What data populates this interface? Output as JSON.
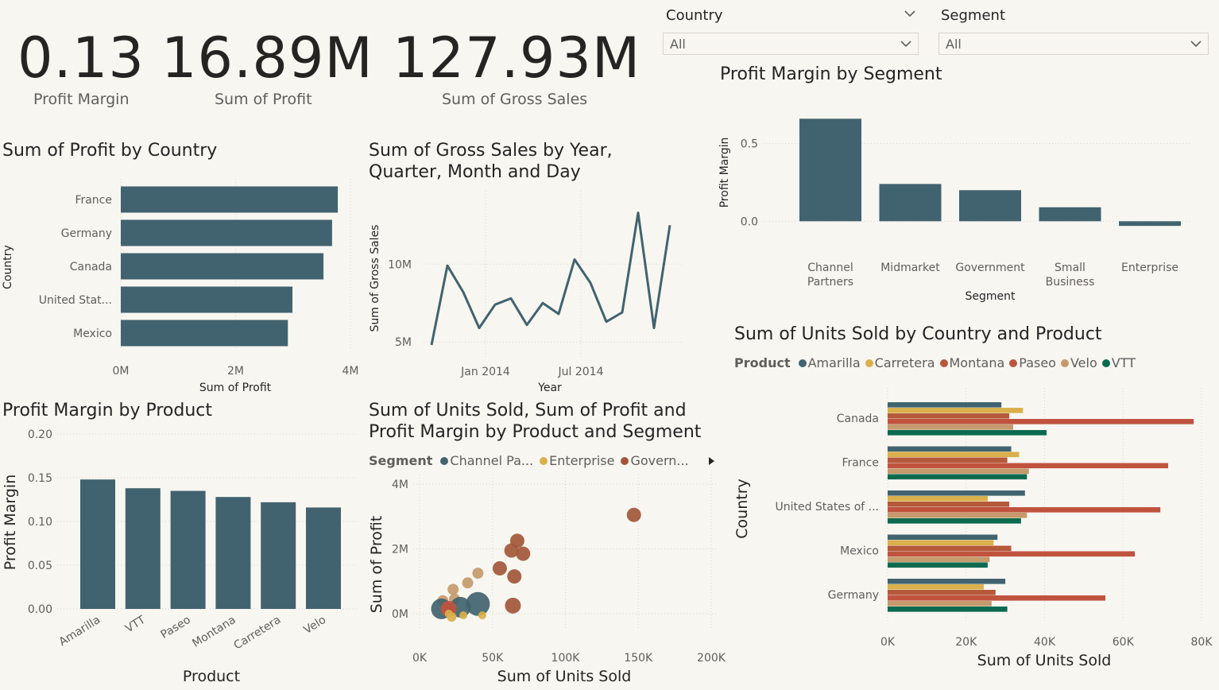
{
  "kpis": [
    {
      "value": "0.13",
      "label": "Profit Margin"
    },
    {
      "value": "16.89M",
      "label": "Sum of Profit"
    },
    {
      "value": "127.93M",
      "label": "Sum of Gross Sales"
    }
  ],
  "slicers": {
    "country": {
      "title": "Country",
      "value": "All"
    },
    "segment": {
      "title": "Segment",
      "value": "All"
    }
  },
  "colors": {
    "bar": "#41636f",
    "Amarilla": "#41636f",
    "Carretera": "#d9b04b",
    "Montana": "#b5593b",
    "Paseo": "#c0533e",
    "Velo": "#c59a6c",
    "VTT": "#0b6a4f",
    "ChannelPartners": "#41636f",
    "Enterprise": "#d9b04b",
    "Government": "#a2573a"
  },
  "chart_data": [
    {
      "id": "profit_by_country",
      "type": "bar",
      "orientation": "horizontal",
      "title": "Sum of Profit by Country",
      "categories": [
        "France",
        "Germany",
        "Canada",
        "United Stat...",
        "Mexico"
      ],
      "values": [
        3.78,
        3.68,
        3.53,
        2.99,
        2.91
      ],
      "xticks": [
        "0M",
        "2M",
        "4M"
      ],
      "xlim": [
        0,
        4
      ],
      "xlabel": "Sum of Profit",
      "ylabel": "Country"
    },
    {
      "id": "gross_sales_by_date",
      "type": "line",
      "title": "Sum of Gross Sales by Year, Quarter, Month and Day",
      "x": [
        "2013-09",
        "2013-10",
        "2013-11",
        "2013-12",
        "2014-01",
        "2014-02",
        "2014-03",
        "2014-04",
        "2014-05",
        "2014-06",
        "2014-07",
        "2014-08",
        "2014-09",
        "2014-10",
        "2014-11",
        "2014-12"
      ],
      "values": [
        4.8,
        9.9,
        8.2,
        5.9,
        7.4,
        7.8,
        6.1,
        7.5,
        6.8,
        10.3,
        8.8,
        6.3,
        6.9,
        13.3,
        5.9,
        12.5
      ],
      "xticks": [
        "Jan 2014",
        "Jul 2014"
      ],
      "yticks": [
        "5M",
        "10M"
      ],
      "ylim": [
        4.5,
        14.2
      ],
      "xlabel": "Year",
      "ylabel": "Sum of Gross Sales"
    },
    {
      "id": "profit_margin_by_segment",
      "type": "bar",
      "title": "Profit Margin by Segment",
      "categories": [
        "Channel Partners",
        "Midmarket",
        "Government",
        "Small Business",
        "Enterprise"
      ],
      "values": [
        0.66,
        0.24,
        0.2,
        0.09,
        -0.03
      ],
      "yticks": [
        "0.5",
        "0.0"
      ],
      "ylim": [
        -0.07,
        0.8
      ],
      "xlabel": "Segment",
      "ylabel": "Profit Margin"
    },
    {
      "id": "profit_margin_by_product",
      "type": "bar",
      "title": "Profit Margin by Product",
      "categories": [
        "Amarilla",
        "VTT",
        "Paseo",
        "Montana",
        "Carretera",
        "Velo"
      ],
      "values": [
        0.148,
        0.138,
        0.135,
        0.128,
        0.122,
        0.116
      ],
      "yticks": [
        "0.00",
        "0.05",
        "0.10",
        "0.15",
        "0.20"
      ],
      "ylim": [
        0,
        0.2
      ],
      "xlabel": "Product",
      "ylabel": "Profit Margin"
    },
    {
      "id": "units_profit_margin_scatter",
      "type": "scatter",
      "title": "Sum of Units Sold, Sum of Profit and Profit Margin by Product and Segment",
      "legend_title": "Segment",
      "legend": [
        "Channel Pa...",
        "Enterprise",
        "Govern..."
      ],
      "points": [
        {
          "x": 147000,
          "y": 3.05,
          "c": "Government",
          "r": 9
        },
        {
          "x": 67000,
          "y": 2.25,
          "c": "Government",
          "r": 9
        },
        {
          "x": 71000,
          "y": 1.85,
          "c": "Government",
          "r": 9
        },
        {
          "x": 63000,
          "y": 1.95,
          "c": "Government",
          "r": 9
        },
        {
          "x": 55000,
          "y": 1.4,
          "c": "Government",
          "r": 9
        },
        {
          "x": 65000,
          "y": 1.15,
          "c": "Government",
          "r": 9
        },
        {
          "x": 64000,
          "y": 0.25,
          "c": "Government",
          "r": 10
        },
        {
          "x": 40000,
          "y": 1.25,
          "c": "Velo",
          "r": 7
        },
        {
          "x": 33000,
          "y": 0.95,
          "c": "Velo",
          "r": 7
        },
        {
          "x": 23000,
          "y": 0.75,
          "c": "Velo",
          "r": 7
        },
        {
          "x": 16000,
          "y": 0.4,
          "c": "Velo",
          "r": 7
        },
        {
          "x": 24000,
          "y": 0.45,
          "c": "Velo",
          "r": 7
        },
        {
          "x": 40000,
          "y": 0.3,
          "c": "ChannelPartners",
          "r": 15
        },
        {
          "x": 15000,
          "y": 0.15,
          "c": "ChannelPartners",
          "r": 13
        },
        {
          "x": 28000,
          "y": 0.2,
          "c": "ChannelPartners",
          "r": 13
        },
        {
          "x": 20000,
          "y": 0.15,
          "c": "Paseo",
          "r": 10
        },
        {
          "x": 43000,
          "y": -0.05,
          "c": "Enterprise",
          "r": 5
        },
        {
          "x": 30000,
          "y": -0.05,
          "c": "Enterprise",
          "r": 5
        },
        {
          "x": 20000,
          "y": 0.0,
          "c": "Enterprise",
          "r": 5
        },
        {
          "x": 22000,
          "y": -0.1,
          "c": "Enterprise",
          "r": 6
        }
      ],
      "xticks": [
        "0K",
        "50K",
        "100K",
        "150K",
        "200K"
      ],
      "xlim": [
        0,
        200000
      ],
      "yticks": [
        "0M",
        "2M",
        "4M"
      ],
      "ylim": [
        -0.2,
        4
      ],
      "xlabel": "Sum of Units Sold",
      "ylabel": "Sum of Profit"
    },
    {
      "id": "units_by_country_product",
      "type": "bar",
      "orientation": "horizontal",
      "title": "Sum of Units Sold by Country and Product",
      "legend_title": "Product",
      "categories": [
        "Canada",
        "France",
        "United States of ...",
        "Mexico",
        "Germany"
      ],
      "series": [
        {
          "name": "Amarilla",
          "values": [
            29000,
            31500,
            35000,
            28000,
            30000
          ]
        },
        {
          "name": "Carretera",
          "values": [
            34500,
            33500,
            25500,
            27000,
            24500
          ]
        },
        {
          "name": "Montana",
          "values": [
            31000,
            30500,
            31000,
            31500,
            27500
          ]
        },
        {
          "name": "Paseo",
          "values": [
            78000,
            71500,
            69500,
            63000,
            55500
          ]
        },
        {
          "name": "Velo",
          "values": [
            32000,
            36000,
            35500,
            26000,
            26500
          ]
        },
        {
          "name": "VTT",
          "values": [
            40500,
            35500,
            34000,
            25500,
            30500
          ]
        }
      ],
      "xticks": [
        "0K",
        "20K",
        "40K",
        "60K",
        "80K"
      ],
      "xlim": [
        0,
        80000
      ],
      "xlabel": "Sum of Units Sold",
      "ylabel": "Country"
    }
  ]
}
